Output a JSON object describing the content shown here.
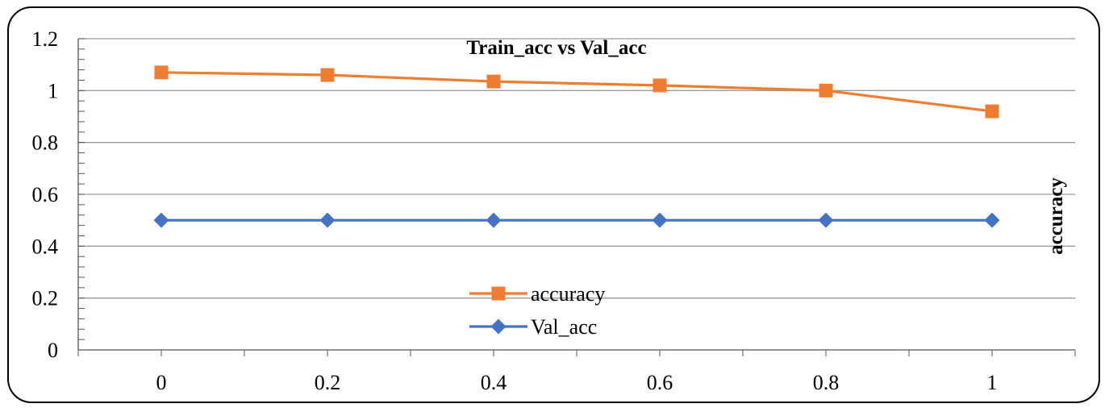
{
  "chart_data": {
    "type": "line",
    "title": "Train_acc vs Val_acc",
    "ylabel": "accuracy",
    "xlabel": "",
    "x": [
      0,
      0.2,
      0.4,
      0.6,
      0.8,
      1
    ],
    "x_tick_labels": [
      "0",
      "0.2",
      "0.4",
      "0.6",
      "0.8",
      "1"
    ],
    "y_tick_labels": [
      "0",
      "0.2",
      "0.4",
      "0.6",
      "0.8",
      "1",
      "1.2"
    ],
    "ylim": [
      0,
      1.2
    ],
    "xlim": [
      -0.1,
      1.1
    ],
    "grid": "horizontal",
    "legend_position": "center-bottom",
    "series": [
      {
        "name": "accuracy",
        "values": [
          1.07,
          1.06,
          1.035,
          1.02,
          1.0,
          0.92
        ],
        "color": "#ED7D31",
        "marker": "square"
      },
      {
        "name": "Val_acc",
        "values": [
          0.5,
          0.5,
          0.5,
          0.5,
          0.5,
          0.5
        ],
        "color": "#4472C4",
        "marker": "diamond"
      }
    ]
  }
}
